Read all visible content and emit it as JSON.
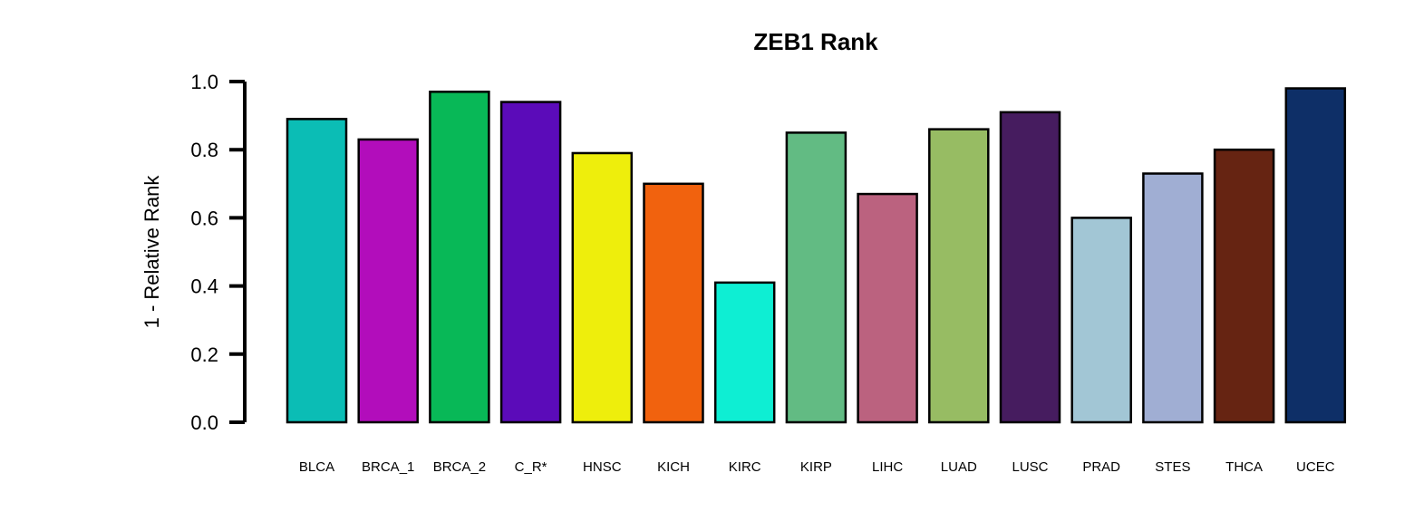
{
  "chart_data": {
    "type": "bar",
    "title": "ZEB1 Rank",
    "xlabel": "",
    "ylabel": "1 - Relative Rank",
    "ylim": [
      0,
      1.0
    ],
    "yticks": [
      0.0,
      0.2,
      0.4,
      0.6,
      0.8,
      1.0
    ],
    "ytick_labels": [
      "0.0",
      "0.2",
      "0.4",
      "0.6",
      "0.8",
      "1.0"
    ],
    "grid": false,
    "legend": "none",
    "categories": [
      "BLCA",
      "BRCA_1",
      "BRCA_2",
      "C_R*",
      "HNSC",
      "KICH",
      "KIRC",
      "KIRP",
      "LIHC",
      "LUAD",
      "LUSC",
      "PRAD",
      "STES",
      "THCA",
      "UCEC"
    ],
    "values": [
      0.89,
      0.83,
      0.97,
      0.94,
      0.79,
      0.7,
      0.41,
      0.85,
      0.67,
      0.86,
      0.91,
      0.6,
      0.73,
      0.8,
      0.98
    ],
    "colors": [
      "#0BBDB5",
      "#B20DBB",
      "#08B857",
      "#5B0BB9",
      "#EEEE0C",
      "#F1620E",
      "#0EEED3",
      "#62BB83",
      "#BB627F",
      "#97BC63",
      "#461C5F",
      "#A2C6D5",
      "#A0AED3",
      "#662412",
      "#0E2F67"
    ]
  }
}
